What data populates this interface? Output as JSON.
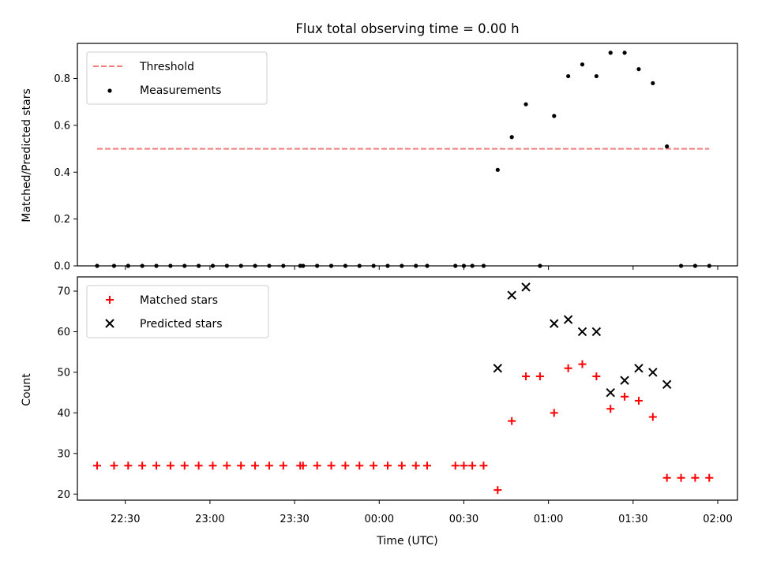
{
  "chart_data": [
    {
      "type": "scatter",
      "title": "Flux total observing time = 0.00 h",
      "xlabel": "",
      "ylabel": "Matched/Predicted stars",
      "xlim": [
        "22:13",
        "02:07"
      ],
      "ylim": [
        0,
        0.95
      ],
      "yticks": [
        "0.0",
        "0.2",
        "0.4",
        "0.6",
        "0.8"
      ],
      "grid": false,
      "legend_position": "top-left",
      "colors": {
        "threshold": "#f08080",
        "measurements": "#000000"
      },
      "threshold": {
        "name": "Threshold",
        "y": 0.5,
        "x_start": "22:20",
        "x_end": "01:57"
      },
      "series": [
        {
          "name": "Measurements",
          "points": [
            [
              "22:20",
              0
            ],
            [
              "22:26",
              0
            ],
            [
              "22:31",
              0
            ],
            [
              "22:36",
              0
            ],
            [
              "22:41",
              0
            ],
            [
              "22:46",
              0
            ],
            [
              "22:51",
              0
            ],
            [
              "22:56",
              0
            ],
            [
              "23:01",
              0
            ],
            [
              "23:06",
              0
            ],
            [
              "23:11",
              0
            ],
            [
              "23:16",
              0
            ],
            [
              "23:21",
              0
            ],
            [
              "23:26",
              0
            ],
            [
              "23:32",
              0
            ],
            [
              "23:33",
              0
            ],
            [
              "23:38",
              0
            ],
            [
              "23:43",
              0
            ],
            [
              "23:48",
              0
            ],
            [
              "23:53",
              0
            ],
            [
              "23:58",
              0
            ],
            [
              "00:03",
              0
            ],
            [
              "00:08",
              0
            ],
            [
              "00:13",
              0
            ],
            [
              "00:17",
              0
            ],
            [
              "00:27",
              0
            ],
            [
              "00:30",
              0
            ],
            [
              "00:33",
              0
            ],
            [
              "00:37",
              0
            ],
            [
              "00:42",
              0.41
            ],
            [
              "00:47",
              0.55
            ],
            [
              "00:52",
              0.69
            ],
            [
              "00:57",
              0
            ],
            [
              "01:02",
              0.64
            ],
            [
              "01:07",
              0.81
            ],
            [
              "01:12",
              0.86
            ],
            [
              "01:17",
              0.81
            ],
            [
              "01:22",
              0.91
            ],
            [
              "01:27",
              0.91
            ],
            [
              "01:32",
              0.84
            ],
            [
              "01:37",
              0.78
            ],
            [
              "01:42",
              0.51
            ],
            [
              "01:47",
              0
            ],
            [
              "01:52",
              0
            ],
            [
              "01:57",
              0
            ]
          ]
        }
      ]
    },
    {
      "type": "scatter",
      "title": "",
      "xlabel": "Time (UTC)",
      "ylabel": "Count",
      "xlim": [
        "22:13",
        "02:07"
      ],
      "ylim": [
        18.5,
        73.5
      ],
      "yticks": [
        "20",
        "30",
        "40",
        "50",
        "60",
        "70"
      ],
      "xticks": [
        "22:30",
        "23:00",
        "23:30",
        "00:00",
        "00:30",
        "01:00",
        "01:30",
        "02:00"
      ],
      "grid": false,
      "legend_position": "top-left",
      "colors": {
        "matched": "#ff0000",
        "predicted": "#000000"
      },
      "series": [
        {
          "name": "Matched stars",
          "marker": "plus",
          "points": [
            [
              "22:20",
              27
            ],
            [
              "22:26",
              27
            ],
            [
              "22:31",
              27
            ],
            [
              "22:36",
              27
            ],
            [
              "22:41",
              27
            ],
            [
              "22:46",
              27
            ],
            [
              "22:51",
              27
            ],
            [
              "22:56",
              27
            ],
            [
              "23:01",
              27
            ],
            [
              "23:06",
              27
            ],
            [
              "23:11",
              27
            ],
            [
              "23:16",
              27
            ],
            [
              "23:21",
              27
            ],
            [
              "23:26",
              27
            ],
            [
              "23:32",
              27
            ],
            [
              "23:33",
              27
            ],
            [
              "23:38",
              27
            ],
            [
              "23:43",
              27
            ],
            [
              "23:48",
              27
            ],
            [
              "23:53",
              27
            ],
            [
              "23:58",
              27
            ],
            [
              "00:03",
              27
            ],
            [
              "00:08",
              27
            ],
            [
              "00:13",
              27
            ],
            [
              "00:17",
              27
            ],
            [
              "00:27",
              27
            ],
            [
              "00:30",
              27
            ],
            [
              "00:33",
              27
            ],
            [
              "00:37",
              27
            ],
            [
              "00:42",
              21
            ],
            [
              "00:47",
              38
            ],
            [
              "00:52",
              49
            ],
            [
              "00:57",
              49
            ],
            [
              "01:02",
              40
            ],
            [
              "01:07",
              51
            ],
            [
              "01:12",
              52
            ],
            [
              "01:17",
              49
            ],
            [
              "01:22",
              41
            ],
            [
              "01:27",
              44
            ],
            [
              "01:32",
              43
            ],
            [
              "01:37",
              39
            ],
            [
              "01:42",
              24
            ],
            [
              "01:47",
              24
            ],
            [
              "01:52",
              24
            ],
            [
              "01:57",
              24
            ]
          ]
        },
        {
          "name": "Predicted stars",
          "marker": "x",
          "points": [
            [
              "00:42",
              51
            ],
            [
              "00:47",
              69
            ],
            [
              "00:52",
              71
            ],
            [
              "01:02",
              62
            ],
            [
              "01:07",
              63
            ],
            [
              "01:12",
              60
            ],
            [
              "01:17",
              60
            ],
            [
              "01:22",
              45
            ],
            [
              "01:27",
              48
            ],
            [
              "01:32",
              51
            ],
            [
              "01:37",
              50
            ],
            [
              "01:42",
              47
            ]
          ]
        }
      ]
    }
  ]
}
